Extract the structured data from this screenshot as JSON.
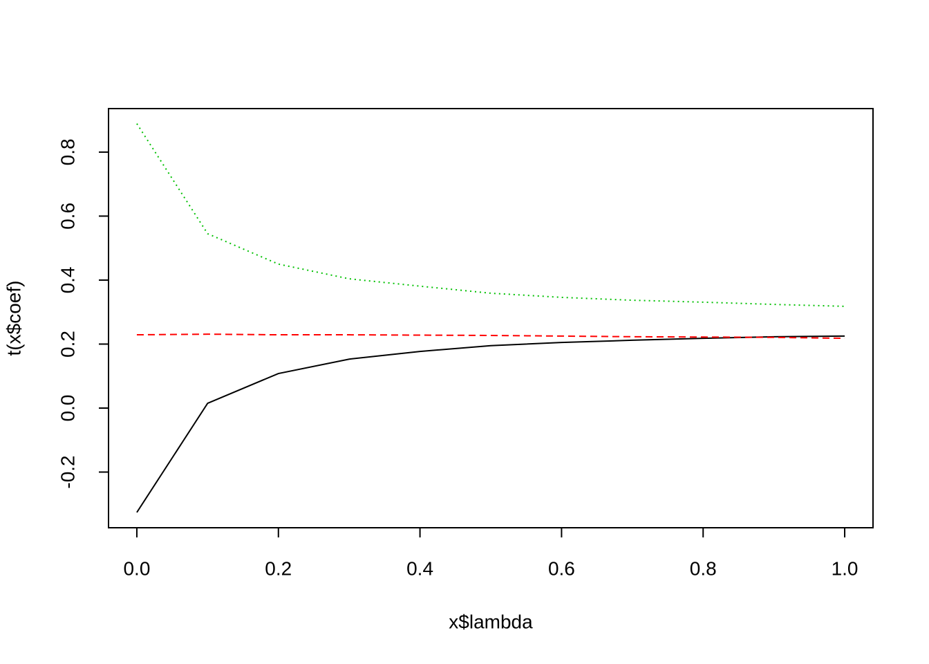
{
  "chart_data": {
    "type": "line",
    "xlabel": "x$lambda",
    "ylabel": "t(x$coef)",
    "x": [
      0,
      0.1,
      0.2,
      0.3,
      0.4,
      0.5,
      0.6,
      0.7,
      0.8,
      0.9,
      1.0
    ],
    "series": [
      {
        "color": "#000000",
        "dash": "solid",
        "values": [
          -0.326,
          0.015,
          0.108,
          0.153,
          0.177,
          0.195,
          0.205,
          0.212,
          0.218,
          0.223,
          0.225
        ]
      },
      {
        "color": "#ff0000",
        "dash": "dashed",
        "values": [
          0.229,
          0.231,
          0.229,
          0.229,
          0.228,
          0.227,
          0.225,
          0.223,
          0.222,
          0.221,
          0.218
        ]
      },
      {
        "color": "#00c000",
        "dash": "dotted",
        "values": [
          0.889,
          0.545,
          0.45,
          0.404,
          0.381,
          0.359,
          0.346,
          0.337,
          0.331,
          0.324,
          0.318
        ]
      }
    ],
    "xlim": [
      -0.04,
      1.04
    ],
    "ylim": [
      -0.374,
      0.936
    ],
    "xticks": [
      {
        "value": 0,
        "label": "0.0"
      },
      0.2,
      0.4,
      0.6,
      0.8,
      {
        "value": 1,
        "label": "1.0"
      }
    ],
    "yticks": [
      -0.2,
      {
        "value": 0,
        "label": "0.0"
      },
      0.2,
      0.4,
      0.6,
      0.8
    ],
    "grid": false
  }
}
